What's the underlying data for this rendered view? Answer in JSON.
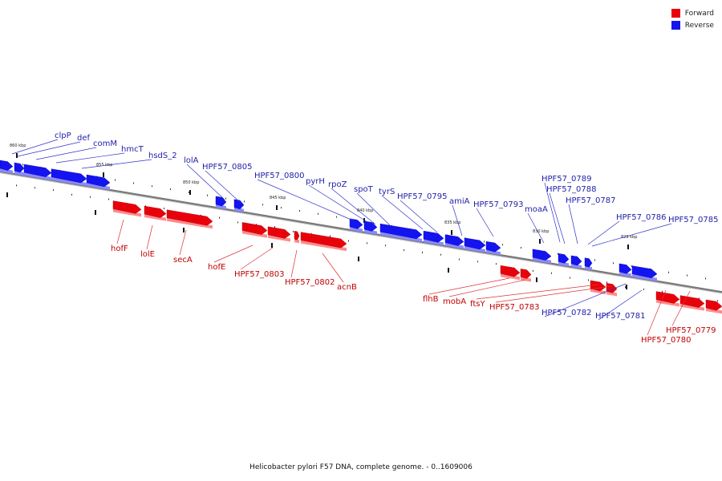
{
  "legend": [
    {
      "label": "Forward",
      "color": "#e8000b"
    },
    {
      "label": "Reverse",
      "color": "#1414f0"
    }
  ],
  "caption": "Helicobacter pylori F57 DNA, complete genome. - 0..1609006",
  "colors": {
    "forward": "#e8000b",
    "forward_shadow": "#ff8a8a",
    "reverse": "#1414f0",
    "reverse_shadow": "#8a8aff",
    "forward_label": "#c00000",
    "reverse_label": "#1e1eaa",
    "backbone": "#777777"
  },
  "genes": [
    {
      "label": "clpP",
      "strand": "reverse"
    },
    {
      "label": "def",
      "strand": "reverse"
    },
    {
      "label": "comM",
      "strand": "reverse"
    },
    {
      "label": "hmcT",
      "strand": "reverse"
    },
    {
      "label": "hsdS_2",
      "strand": "reverse"
    },
    {
      "label": "lolA",
      "strand": "reverse"
    },
    {
      "label": "HPF57_0805",
      "strand": "reverse"
    },
    {
      "label": "HPF57_0800",
      "strand": "reverse"
    },
    {
      "label": "pyrH",
      "strand": "reverse"
    },
    {
      "label": "rpoZ",
      "strand": "reverse"
    },
    {
      "label": "spoT",
      "strand": "reverse"
    },
    {
      "label": "tyrS",
      "strand": "reverse"
    },
    {
      "label": "HPF57_0795",
      "strand": "reverse"
    },
    {
      "label": "amiA",
      "strand": "reverse"
    },
    {
      "label": "HPF57_0793",
      "strand": "reverse"
    },
    {
      "label": "moaA",
      "strand": "reverse"
    },
    {
      "label": "HPF57_0789",
      "strand": "reverse"
    },
    {
      "label": "HPF57_0788",
      "strand": "reverse"
    },
    {
      "label": "HPF57_0787",
      "strand": "reverse"
    },
    {
      "label": "HPF57_0786",
      "strand": "reverse"
    },
    {
      "label": "HPF57_0785",
      "strand": "reverse"
    },
    {
      "label": "HPF57_0782",
      "strand": "reverse"
    },
    {
      "label": "HPF57_0781",
      "strand": "reverse"
    },
    {
      "label": "hofF",
      "strand": "forward"
    },
    {
      "label": "lolE",
      "strand": "forward"
    },
    {
      "label": "secA",
      "strand": "forward"
    },
    {
      "label": "hofE",
      "strand": "forward"
    },
    {
      "label": "HPF57_0803",
      "strand": "forward"
    },
    {
      "label": "HPF57_0802",
      "strand": "forward"
    },
    {
      "label": "acnB",
      "strand": "forward"
    },
    {
      "label": "flhB",
      "strand": "forward"
    },
    {
      "label": "mobA",
      "strand": "forward"
    },
    {
      "label": "ftsY",
      "strand": "forward"
    },
    {
      "label": "HPF57_0783",
      "strand": "forward"
    },
    {
      "label": "HPF57_0779",
      "strand": "forward"
    },
    {
      "label": "HPF57_0780",
      "strand": "forward"
    }
  ],
  "ticks": [
    "860 kbp",
    "855 kbp",
    "850 kbp",
    "845 kbp",
    "840 kbp",
    "835 kbp",
    "830 kbp",
    "829 kbp"
  ]
}
